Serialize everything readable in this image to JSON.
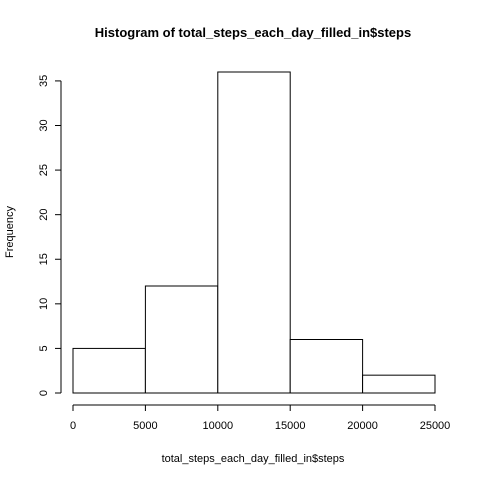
{
  "chart_data": {
    "type": "bar",
    "title": "Histogram of total_steps_each_day_filled_in$steps",
    "xlabel": "total_steps_each_day_filled_in$steps",
    "ylabel": "Frequency",
    "bins": [
      {
        "start": 0,
        "end": 5000,
        "count": 5
      },
      {
        "start": 5000,
        "end": 10000,
        "count": 12
      },
      {
        "start": 10000,
        "end": 15000,
        "count": 36
      },
      {
        "start": 15000,
        "end": 20000,
        "count": 6
      },
      {
        "start": 20000,
        "end": 25000,
        "count": 2
      }
    ],
    "x_ticks": [
      "0",
      "5000",
      "10000",
      "15000",
      "20000",
      "25000"
    ],
    "y_ticks": [
      "0",
      "5",
      "10",
      "15",
      "20",
      "25",
      "30",
      "35"
    ],
    "xlim": [
      0,
      25000
    ],
    "ylim": [
      0,
      36
    ],
    "grid": false,
    "bar_fill": "#ffffff",
    "bar_stroke": "#000000"
  }
}
